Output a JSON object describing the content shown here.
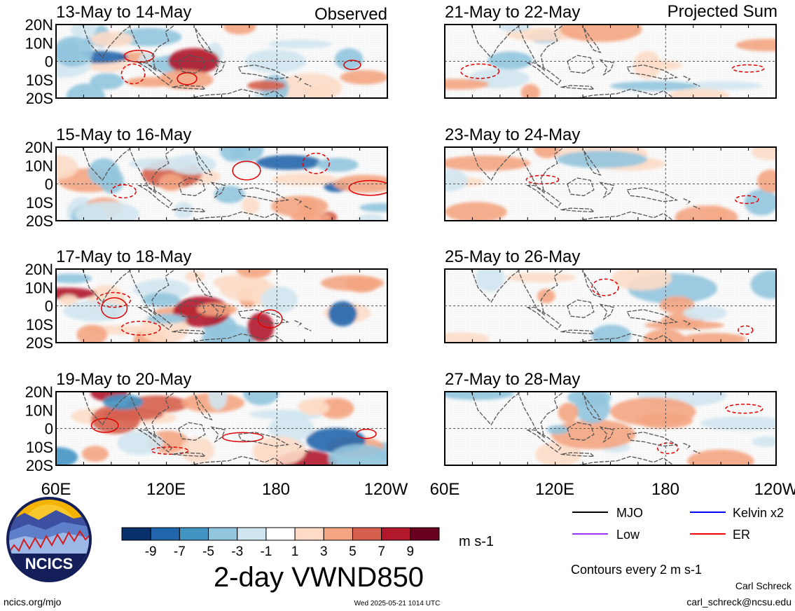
{
  "figure": {
    "title": "2-day VWND850",
    "units": "m s-1",
    "contour_note": "Contours every 2 m s-1",
    "timestamp": "Wed 2025-05-21 1014 UTC",
    "url": "ncics.org/mjo",
    "author": "Carl Schreck",
    "email": "carl_schreck@ncsu.edu",
    "logo_text": "NCICS"
  },
  "columns": {
    "left": "Observed",
    "right": "Projected Sum"
  },
  "panels": {
    "left": [
      {
        "date": "13-May to 14-May"
      },
      {
        "date": "15-May to 16-May"
      },
      {
        "date": "17-May to 18-May"
      },
      {
        "date": "19-May to 20-May"
      }
    ],
    "right": [
      {
        "date": "21-May to 22-May"
      },
      {
        "date": "23-May to 24-May"
      },
      {
        "date": "25-May to 26-May"
      },
      {
        "date": "27-May to 28-May"
      }
    ]
  },
  "axes": {
    "y_ticks": [
      "20N",
      "10N",
      "0",
      "10S",
      "20S"
    ],
    "x_ticks": [
      "60E",
      "120E",
      "180",
      "120W"
    ]
  },
  "colorbar": {
    "labels": [
      "-9",
      "-7",
      "-5",
      "-3",
      "-1",
      "1",
      "3",
      "5",
      "7",
      "9"
    ],
    "colors": [
      "#08306b",
      "#2166ac",
      "#4393c3",
      "#92c5de",
      "#d1e5f0",
      "#ffffff",
      "#fddbc7",
      "#f4a582",
      "#d6604d",
      "#b2182b",
      "#67001f"
    ]
  },
  "legend": [
    {
      "label": "MJO",
      "color": "#000000"
    },
    {
      "label": "Kelvin x2",
      "color": "#0000ff"
    },
    {
      "label": "Low",
      "color": "#9933ff"
    },
    {
      "label": "ER",
      "color": "#ff0000"
    }
  ]
}
